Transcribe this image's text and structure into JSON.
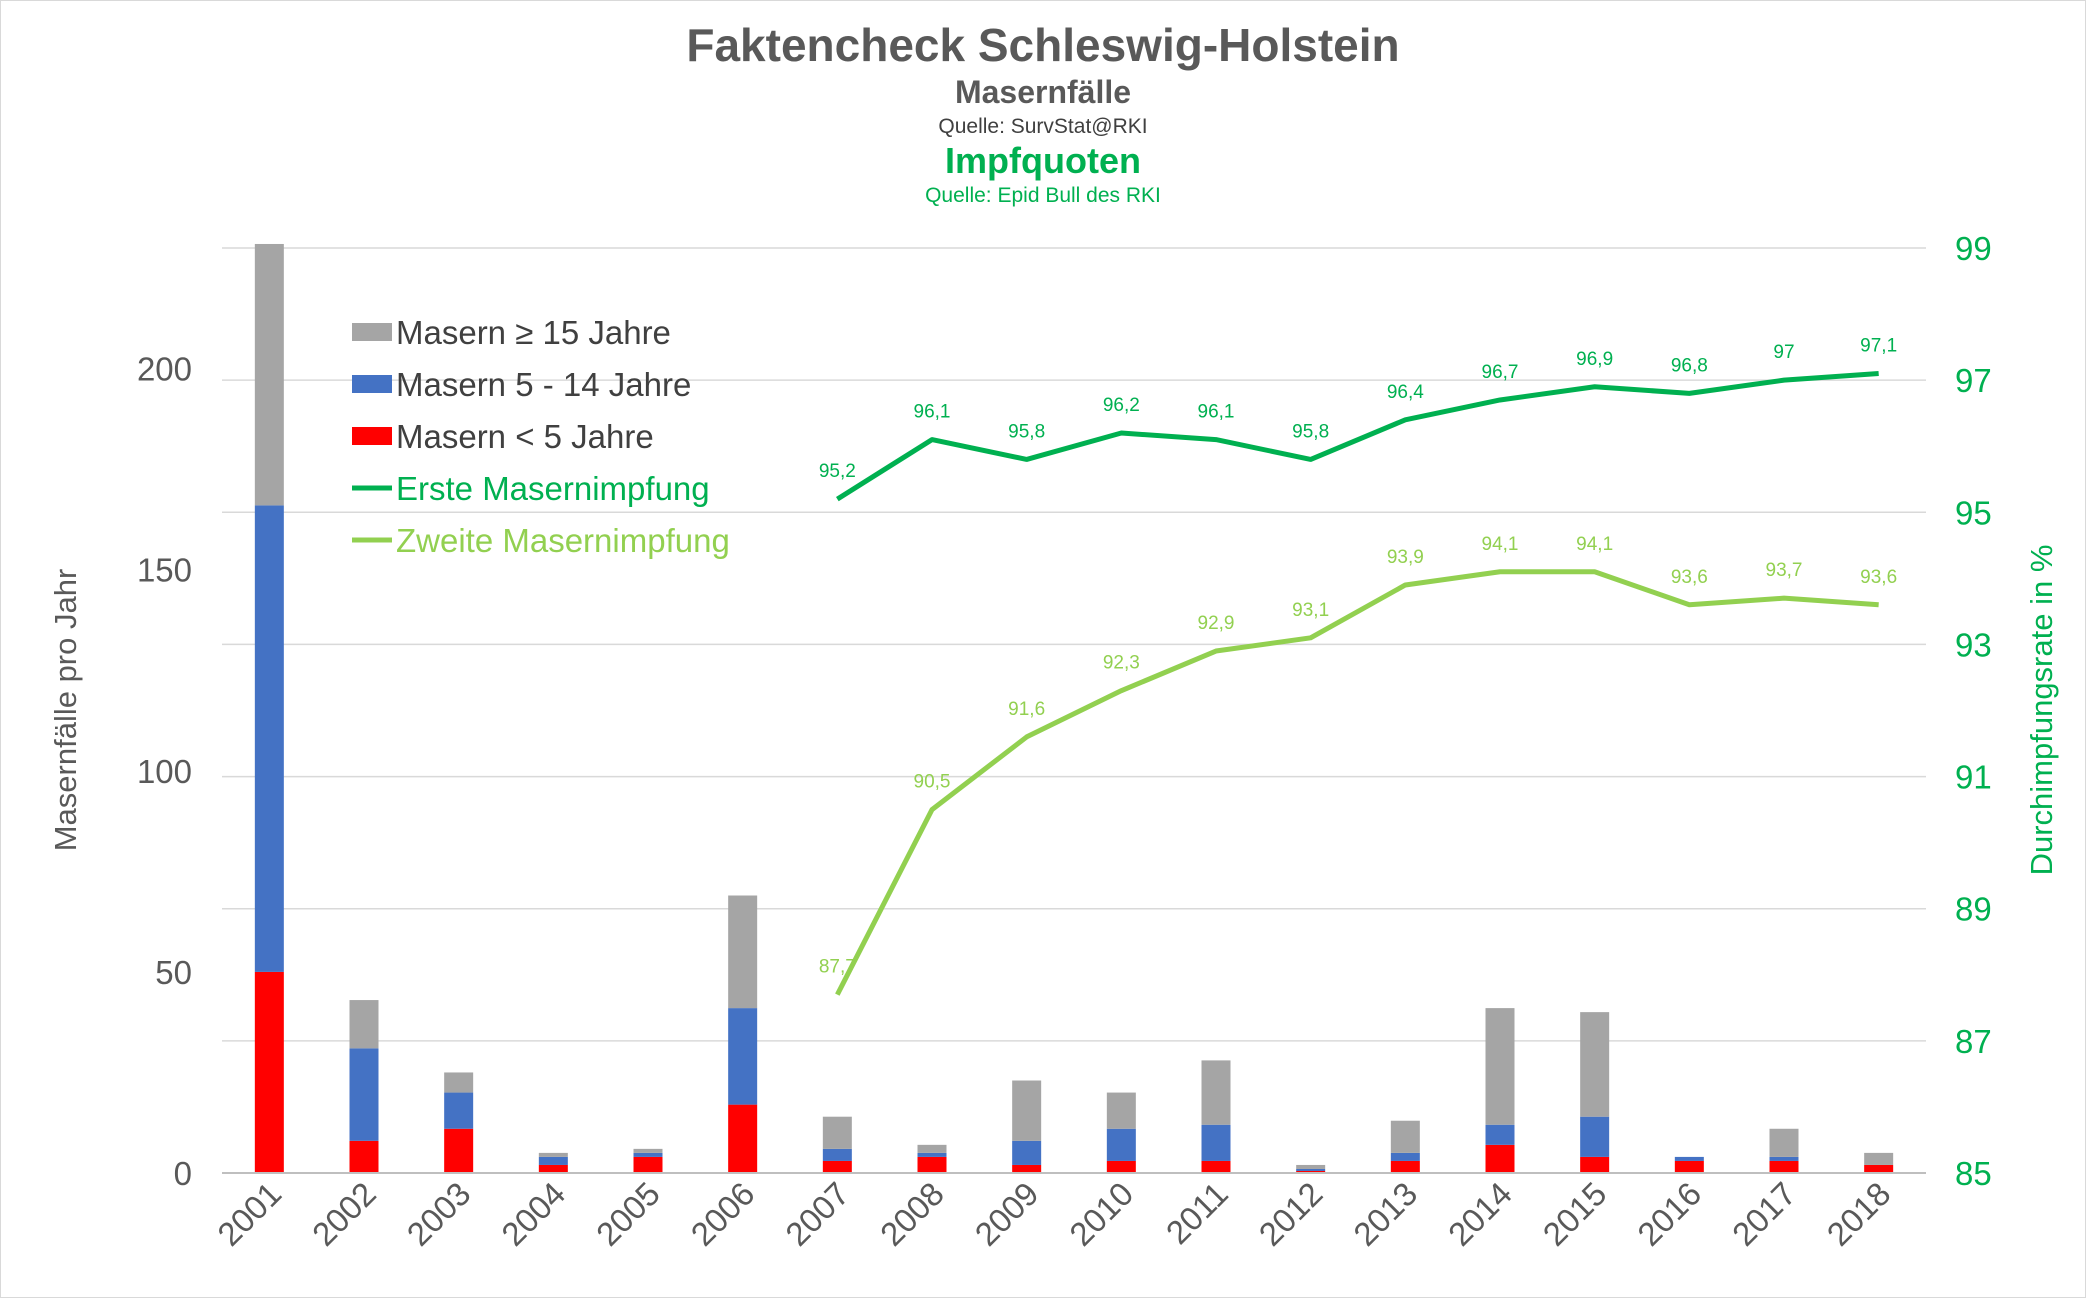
{
  "title": "Faktencheck Schleswig-Holstein",
  "subtitle_cases": "Masernfälle",
  "source_cases": "Quelle: SurvStat@RKI",
  "subtitle_vacc": "Impfquoten",
  "source_vacc": "Quelle: Epid Bull des RKI",
  "colors": {
    "lt5": "#ff0000",
    "age5to14": "#4472c4",
    "ge15": "#a5a5a5",
    "first_dose": "#00b050",
    "second_dose": "#92d050",
    "grid": "#d9d9d9",
    "axis_text": "#595959"
  },
  "chart_data": {
    "type": "bar",
    "title": "Faktencheck Schleswig-Holstein",
    "categories": [
      "2001",
      "2002",
      "2003",
      "2004",
      "2005",
      "2006",
      "2007",
      "2008",
      "2009",
      "2010",
      "2011",
      "2012",
      "2013",
      "2014",
      "2015",
      "2016",
      "2017",
      "2018"
    ],
    "ylabel": "Masernfälle pro Jahr",
    "ylim": [
      0,
      230
    ],
    "yticks": [
      "0",
      "50",
      "100",
      "150",
      "200"
    ],
    "y2label": "Durchimpfungsrate in %",
    "y2lim": [
      85,
      99
    ],
    "y2ticks": [
      "85",
      "87",
      "89",
      "91",
      "93",
      "95",
      "97",
      "99"
    ],
    "bar_series": [
      {
        "name": "Masern < 5 Jahre",
        "color": "#ff0000",
        "values": [
          50,
          8,
          11,
          2,
          4,
          17,
          3,
          4,
          2,
          3,
          3,
          0.5,
          3,
          7,
          4,
          3,
          3,
          2
        ]
      },
      {
        "name": "Masern 5 - 14 Jahre",
        "color": "#4472c4",
        "values": [
          116,
          23,
          9,
          2,
          1,
          24,
          3,
          1,
          6,
          8,
          9,
          0.5,
          2,
          5,
          10,
          1,
          1,
          0
        ]
      },
      {
        "name": "Masern ≥ 15 Jahre",
        "color": "#a5a5a5",
        "values": [
          65,
          12,
          5,
          1,
          1,
          28,
          8,
          2,
          15,
          9,
          16,
          1,
          8,
          29,
          26,
          0,
          7,
          3
        ]
      }
    ],
    "line_series": [
      {
        "name": "Erste Masernimpfung",
        "color": "#00b050",
        "start_index": 6,
        "values": [
          95.2,
          96.1,
          95.8,
          96.2,
          96.1,
          95.8,
          96.4,
          96.7,
          96.9,
          96.8,
          97.0,
          97.1
        ],
        "labels": [
          "95,2",
          "96,1",
          "95,8",
          "96,2",
          "96,1",
          "95,8",
          "96,4",
          "96,7",
          "96,9",
          "96,8",
          "97",
          "97,1"
        ]
      },
      {
        "name": "Zweite Masernimpfung",
        "color": "#92d050",
        "start_index": 6,
        "values": [
          87.7,
          90.5,
          91.6,
          92.3,
          92.9,
          93.1,
          93.9,
          94.1,
          94.1,
          93.6,
          93.7,
          93.6
        ],
        "labels": [
          "87,7",
          "90,5",
          "91,6",
          "92,3",
          "92,9",
          "93,1",
          "93,9",
          "94,1",
          "94,1",
          "93,6",
          "93,7",
          "93,6"
        ]
      }
    ],
    "legend": [
      {
        "label": "Masern ≥ 15 Jahre",
        "kind": "box",
        "color": "#a5a5a5"
      },
      {
        "label": "Masern 5 - 14 Jahre",
        "kind": "box",
        "color": "#4472c4"
      },
      {
        "label": "Masern < 5 Jahre",
        "kind": "box",
        "color": "#ff0000"
      },
      {
        "label": "Erste Masernimpfung",
        "kind": "line",
        "color": "#00b050",
        "text_color": "#00b050"
      },
      {
        "label": "Zweite Masernimpfung",
        "kind": "line",
        "color": "#92d050",
        "text_color": "#92d050"
      }
    ],
    "legend_position": "top-left"
  }
}
